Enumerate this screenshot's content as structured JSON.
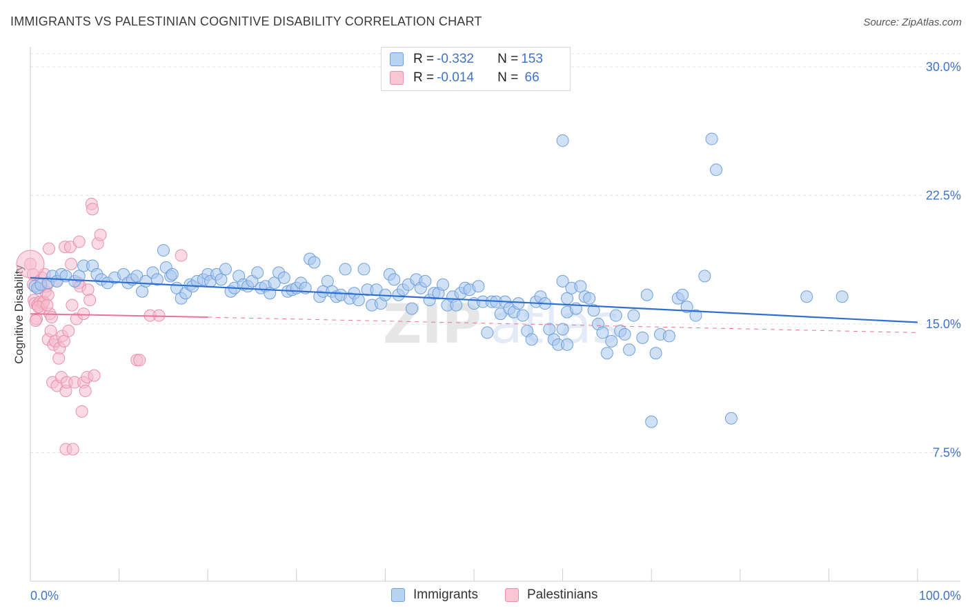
{
  "title": "IMMIGRANTS VS PALESTINIAN COGNITIVE DISABILITY CORRELATION CHART",
  "source": "Source: ZipAtlas.com",
  "legend": {
    "rows": [
      {
        "r_label": "R = ",
        "r_value": "-0.332",
        "n_label": "N = ",
        "n_value": "153"
      },
      {
        "r_label": "R = ",
        "r_value": "-0.014",
        "n_label": "N = ",
        "n_value": " 66"
      }
    ],
    "series_names": [
      "Immigrants",
      "Palestinians"
    ]
  },
  "colors": {
    "immigrants_fill": "#a9c8ef",
    "immigrants_stroke": "#6d9fdc",
    "immigrants_line": "#2f6fd1",
    "palestinians_fill": "#f6bccd",
    "palestinians_stroke": "#e98fab",
    "palestinians_line": "#e8739a",
    "axis_text": "#3f74c7"
  },
  "chart_data": {
    "type": "scatter",
    "xlabel": "",
    "ylabel": "Cognitive Disability",
    "xlim": [
      0,
      100
    ],
    "ylim": [
      0,
      30
    ],
    "y_ticks": [
      "7.5%",
      "15.0%",
      "22.5%",
      "30.0%"
    ],
    "y_tick_values": [
      7.5,
      15.0,
      22.5,
      30.0
    ],
    "x_tick_labels": [
      "0.0%",
      "100.0%"
    ],
    "grid": true,
    "legend_position": "top-center",
    "series": [
      {
        "name": "Immigrants",
        "trend": {
          "x": [
            0,
            100
          ],
          "y": [
            17.7,
            15.1
          ]
        },
        "points": [
          [
            0.5,
            17.2
          ],
          [
            0.8,
            17.1
          ],
          [
            1.2,
            17.3
          ],
          [
            2,
            17.4
          ],
          [
            2.5,
            17.8
          ],
          [
            3,
            17.5
          ],
          [
            3.5,
            17.9
          ],
          [
            4,
            17.8
          ],
          [
            5,
            17.5
          ],
          [
            5.5,
            17.8
          ],
          [
            6,
            18.4
          ],
          [
            7,
            18.4
          ],
          [
            7.5,
            17.9
          ],
          [
            8,
            17.6
          ],
          [
            8.7,
            17.4
          ],
          [
            9.5,
            17.7
          ],
          [
            10.5,
            17.9
          ],
          [
            11,
            17.4
          ],
          [
            11.5,
            17.6
          ],
          [
            12,
            17.8
          ],
          [
            12.6,
            16.9
          ],
          [
            13,
            17.5
          ],
          [
            13.8,
            18.0
          ],
          [
            14.3,
            17.6
          ],
          [
            15,
            19.3
          ],
          [
            15.3,
            18.3
          ],
          [
            15.8,
            17.8
          ],
          [
            16,
            17.9
          ],
          [
            16.5,
            17.1
          ],
          [
            17,
            16.5
          ],
          [
            17.5,
            16.8
          ],
          [
            18,
            17.3
          ],
          [
            18.3,
            17.2
          ],
          [
            18.8,
            17.5
          ],
          [
            19.5,
            17.6
          ],
          [
            20,
            17.9
          ],
          [
            20.3,
            17.5
          ],
          [
            21,
            17.9
          ],
          [
            21.5,
            17.6
          ],
          [
            22,
            18.2
          ],
          [
            22.6,
            16.9
          ],
          [
            23,
            17.1
          ],
          [
            23.5,
            17.8
          ],
          [
            24,
            17.3
          ],
          [
            24.5,
            17.2
          ],
          [
            25,
            17.5
          ],
          [
            25.6,
            18.0
          ],
          [
            26,
            17.1
          ],
          [
            26.5,
            17.2
          ],
          [
            27,
            16.8
          ],
          [
            27.5,
            17.4
          ],
          [
            28,
            18.0
          ],
          [
            28.6,
            17.7
          ],
          [
            29,
            16.9
          ],
          [
            29.5,
            17.0
          ],
          [
            30,
            17.1
          ],
          [
            30.5,
            17.4
          ],
          [
            31,
            17.1
          ],
          [
            31.5,
            18.8
          ],
          [
            32,
            18.6
          ],
          [
            32.6,
            16.6
          ],
          [
            33,
            16.9
          ],
          [
            33.5,
            17.5
          ],
          [
            34,
            16.9
          ],
          [
            34.5,
            16.6
          ],
          [
            35,
            16.7
          ],
          [
            35.5,
            18.2
          ],
          [
            36,
            16.5
          ],
          [
            36.5,
            16.8
          ],
          [
            37,
            16.4
          ],
          [
            37.6,
            18.2
          ],
          [
            38,
            17.0
          ],
          [
            38.5,
            16.1
          ],
          [
            39,
            17.0
          ],
          [
            39.5,
            16.2
          ],
          [
            40,
            16.7
          ],
          [
            40.5,
            17.9
          ],
          [
            41,
            17.6
          ],
          [
            41.5,
            16.7
          ],
          [
            42,
            17.0
          ],
          [
            42.6,
            17.3
          ],
          [
            43,
            15.9
          ],
          [
            43.5,
            17.6
          ],
          [
            44,
            17.1
          ],
          [
            44.5,
            17.5
          ],
          [
            45,
            16.4
          ],
          [
            45.5,
            16.8
          ],
          [
            46,
            16.8
          ],
          [
            46.5,
            17.3
          ],
          [
            47,
            16.1
          ],
          [
            47.6,
            16.6
          ],
          [
            48,
            16.1
          ],
          [
            48.5,
            16.8
          ],
          [
            49,
            17.1
          ],
          [
            49.5,
            17.0
          ],
          [
            50,
            16.2
          ],
          [
            50.5,
            17.2
          ],
          [
            51,
            16.3
          ],
          [
            51.5,
            14.5
          ],
          [
            52,
            16.3
          ],
          [
            52.5,
            16.3
          ],
          [
            53,
            15.6
          ],
          [
            53.5,
            16.3
          ],
          [
            54,
            15.9
          ],
          [
            54.5,
            15.7
          ],
          [
            55,
            16.2
          ],
          [
            55.5,
            15.5
          ],
          [
            56,
            14.6
          ],
          [
            56.5,
            14.1
          ],
          [
            57,
            16.3
          ],
          [
            57.5,
            16.6
          ],
          [
            58,
            16.2
          ],
          [
            58.5,
            14.7
          ],
          [
            59,
            14.1
          ],
          [
            59.5,
            13.8
          ],
          [
            60,
            14.7
          ],
          [
            60.5,
            13.8
          ],
          [
            60,
            17.5
          ],
          [
            60.5,
            16.5
          ],
          [
            60.5,
            15.7
          ],
          [
            61,
            17.1
          ],
          [
            61.5,
            15.9
          ],
          [
            62,
            17.2
          ],
          [
            62.5,
            16.6
          ],
          [
            63,
            16.5
          ],
          [
            63.5,
            15.8
          ],
          [
            64,
            15.0
          ],
          [
            64.5,
            14.5
          ],
          [
            65,
            13.3
          ],
          [
            65.5,
            14.0
          ],
          [
            66,
            15.5
          ],
          [
            66.5,
            14.6
          ],
          [
            67,
            14.4
          ],
          [
            67.5,
            13.5
          ],
          [
            68,
            15.5
          ],
          [
            69,
            14.2
          ],
          [
            69.5,
            16.7
          ],
          [
            70,
            9.3
          ],
          [
            70.5,
            13.3
          ],
          [
            71,
            14.4
          ],
          [
            72,
            14.3
          ],
          [
            73,
            16.5
          ],
          [
            73.5,
            16.7
          ],
          [
            74,
            16.0
          ],
          [
            75,
            15.5
          ],
          [
            76,
            17.8
          ],
          [
            76.8,
            25.8
          ],
          [
            77.3,
            24.0
          ],
          [
            79,
            9.5
          ],
          [
            60,
            25.7
          ],
          [
            87.5,
            16.6
          ],
          [
            91.5,
            16.6
          ]
        ]
      },
      {
        "name": "Palestinians",
        "trend": {
          "x": [
            0,
            20
          ],
          "y": [
            15.6,
            15.4
          ]
        },
        "trend_dashed": {
          "x": [
            20,
            100
          ],
          "y": [
            15.4,
            14.5
          ]
        },
        "points": [
          [
            0,
            18.5
          ],
          [
            0.3,
            17.3
          ],
          [
            0.4,
            16.4
          ],
          [
            0.5,
            16.2
          ],
          [
            0.7,
            15.3
          ],
          [
            0.8,
            16.1
          ],
          [
            1,
            17.1
          ],
          [
            1.1,
            16.3
          ],
          [
            1.2,
            15.9
          ],
          [
            1.3,
            17.7
          ],
          [
            1.4,
            16.2
          ],
          [
            1.5,
            16.3
          ],
          [
            1.6,
            17.9
          ],
          [
            1.7,
            16.9
          ],
          [
            1.8,
            17.2
          ],
          [
            2,
            16.7
          ],
          [
            2,
            14.1
          ],
          [
            2.2,
            15.6
          ],
          [
            2.3,
            14.6
          ],
          [
            2.5,
            11.6
          ],
          [
            2.6,
            13.8
          ],
          [
            2.8,
            14.0
          ],
          [
            3,
            11.4
          ],
          [
            3,
            17.5
          ],
          [
            3.2,
            13.0
          ],
          [
            3.3,
            13.6
          ],
          [
            3.5,
            11.9
          ],
          [
            3.6,
            14.3
          ],
          [
            3.8,
            14.0
          ],
          [
            3.9,
            19.5
          ],
          [
            4,
            11.1
          ],
          [
            4,
            7.7
          ],
          [
            4.1,
            11.6
          ],
          [
            4.3,
            14.6
          ],
          [
            4.5,
            19.5
          ],
          [
            4.6,
            18.5
          ],
          [
            4.7,
            16.1
          ],
          [
            4.8,
            7.7
          ],
          [
            5,
            11.6
          ],
          [
            5.2,
            15.3
          ],
          [
            5.4,
            17.4
          ],
          [
            5.5,
            19.8
          ],
          [
            5.6,
            17.2
          ],
          [
            5.8,
            9.9
          ],
          [
            6,
            11.6
          ],
          [
            6,
            15.6
          ],
          [
            6.2,
            11.1
          ],
          [
            6.4,
            11.9
          ],
          [
            6.5,
            17.0
          ],
          [
            6.7,
            16.4
          ],
          [
            6.9,
            22.0
          ],
          [
            7,
            21.7
          ],
          [
            7.2,
            12.0
          ],
          [
            7.6,
            19.7
          ],
          [
            7.9,
            20.2
          ],
          [
            2.1,
            19.4
          ],
          [
            0.3,
            17.9
          ],
          [
            0.6,
            15.2
          ],
          [
            0.9,
            16.0
          ],
          [
            1.9,
            16.1
          ],
          [
            2.4,
            15.4
          ],
          [
            12,
            12.9
          ],
          [
            13.5,
            15.5
          ],
          [
            14.5,
            15.5
          ],
          [
            17,
            19.0
          ],
          [
            12.3,
            12.9
          ]
        ]
      }
    ]
  }
}
